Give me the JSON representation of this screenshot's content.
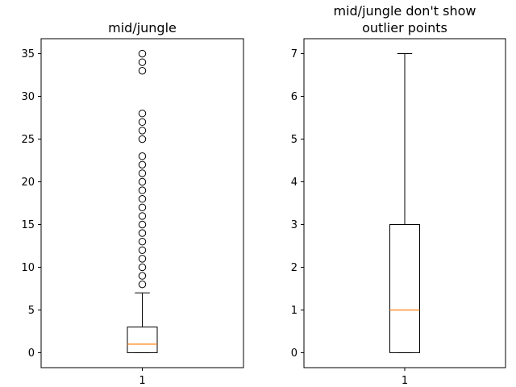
{
  "chart_data": [
    {
      "type": "boxplot",
      "title": "mid/jungle",
      "xlabel": "",
      "ylabel": "",
      "categories": [
        "1"
      ],
      "ylim": [
        -1.75,
        36.75
      ],
      "yticks": [
        "0",
        "5",
        "10",
        "15",
        "20",
        "25",
        "30",
        "35"
      ],
      "box": {
        "min": 0,
        "q1": 0,
        "median": 1,
        "q3": 3,
        "max": 7
      },
      "fliers": [
        8,
        9,
        10,
        11,
        12,
        13,
        14,
        15,
        16,
        17,
        18,
        19,
        20,
        21,
        22,
        23,
        25,
        26,
        27,
        28,
        33,
        34,
        35
      ],
      "colors": {
        "median": "#ff7f0e",
        "box": "#000000"
      }
    },
    {
      "type": "boxplot",
      "title": "mid/jungle don't show\noutlier points",
      "xlabel": "",
      "ylabel": "",
      "categories": [
        "1"
      ],
      "ylim": [
        -0.35,
        7.35
      ],
      "yticks": [
        "0",
        "1",
        "2",
        "3",
        "4",
        "5",
        "6",
        "7"
      ],
      "box": {
        "min": 0,
        "q1": 0,
        "median": 1,
        "q3": 3,
        "max": 7
      },
      "fliers": [],
      "colors": {
        "median": "#ff7f0e",
        "box": "#000000"
      }
    }
  ]
}
